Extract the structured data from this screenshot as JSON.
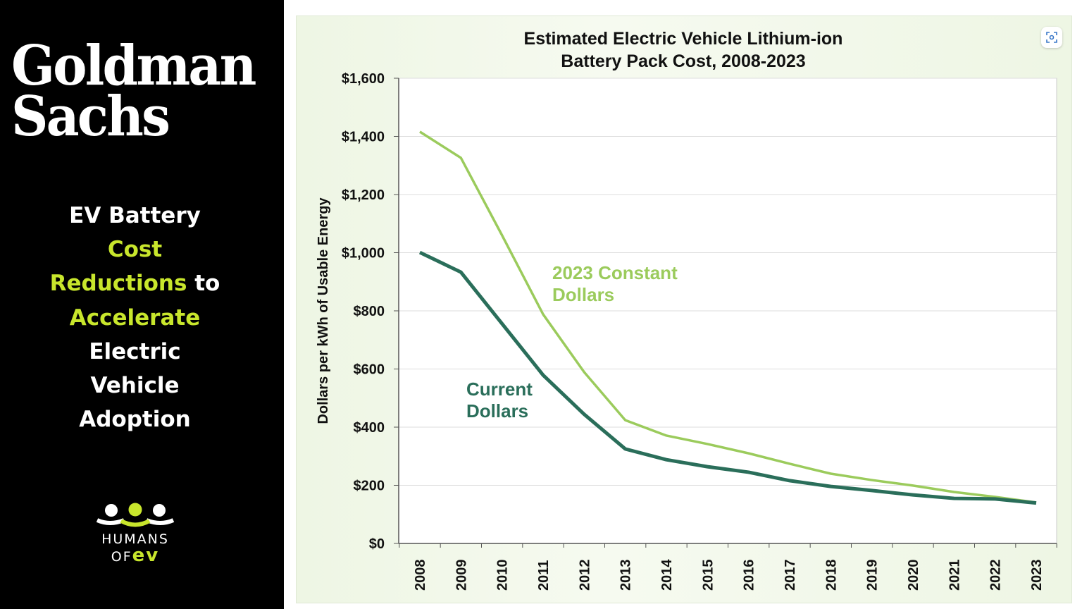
{
  "sidebar": {
    "logo": [
      "Goldman",
      "Sachs"
    ],
    "headline": [
      [
        {
          "t": "EV Battery",
          "h": false
        }
      ],
      [
        {
          "t": "Cost",
          "h": true
        }
      ],
      [
        {
          "t": "Reductions",
          "h": true
        },
        {
          "t": " to",
          "h": false
        }
      ],
      [
        {
          "t": "Accelerate",
          "h": true
        }
      ],
      [
        {
          "t": "Electric",
          "h": false
        }
      ],
      [
        {
          "t": "Vehicle",
          "h": false
        }
      ],
      [
        {
          "t": "Adoption",
          "h": false
        }
      ]
    ],
    "brand": {
      "line1": "HUMANS",
      "line2": "OF",
      "ev": "ev"
    }
  },
  "colors": {
    "constant": "#9bcb5c",
    "current": "#2a6e5a",
    "accent": "#c8e62c"
  },
  "chart_data": {
    "type": "line",
    "title": [
      "Estimated Electric Vehicle Lithium-ion",
      "Battery Pack Cost, 2008-2023"
    ],
    "xlabel": "",
    "ylabel": "Dollars per kWh of Usable Energy",
    "ylim": [
      0,
      1600
    ],
    "yticks": [
      "$0",
      "$200",
      "$400",
      "$600",
      "$800",
      "$1,000",
      "$1,200",
      "$1,400",
      "$1,600"
    ],
    "x": [
      "2008",
      "2009",
      "2010",
      "2011",
      "2012",
      "2013",
      "2014",
      "2015",
      "2016",
      "2017",
      "2018",
      "2019",
      "2020",
      "2021",
      "2022",
      "2023"
    ],
    "grid": true,
    "series": [
      {
        "name": "2023 Constant Dollars",
        "label": [
          "2023 Constant",
          "Dollars"
        ],
        "values": [
          1416,
          1326,
          1060,
          788,
          589,
          424,
          371,
          342,
          310,
          274,
          240,
          218,
          199,
          177,
          160,
          141
        ]
      },
      {
        "name": "Current Dollars",
        "label": [
          "Current",
          "Dollars"
        ],
        "values": [
          1001,
          933,
          756,
          579,
          444,
          325,
          288,
          264,
          245,
          216,
          196,
          182,
          167,
          155,
          153,
          139
        ]
      }
    ]
  }
}
